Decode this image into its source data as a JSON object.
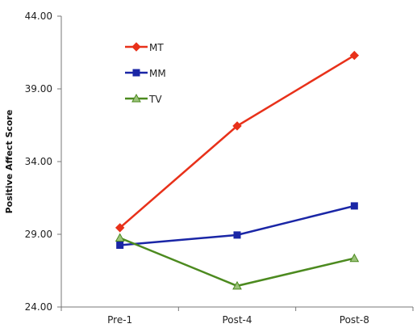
{
  "chart_data": {
    "type": "line",
    "categories": [
      "Pre-1",
      "Post-4",
      "Post-8"
    ],
    "ylabel": "Positive Affect Score",
    "ylim": [
      24,
      44
    ],
    "yticks": [
      "24.00",
      "29.00",
      "34.00",
      "39.00",
      "44.00"
    ],
    "grid": false,
    "legend": "top-left",
    "series": [
      {
        "name": "MT",
        "values": [
          29.45,
          36.45,
          41.3
        ],
        "color": "#e8311a",
        "marker": "diamond"
      },
      {
        "name": "MM",
        "values": [
          28.25,
          28.95,
          30.95
        ],
        "color": "#1a26a6",
        "marker": "square"
      },
      {
        "name": "TV",
        "values": [
          28.75,
          25.45,
          27.35
        ],
        "color": "#4c8a1f",
        "marker": "triangle"
      }
    ]
  }
}
